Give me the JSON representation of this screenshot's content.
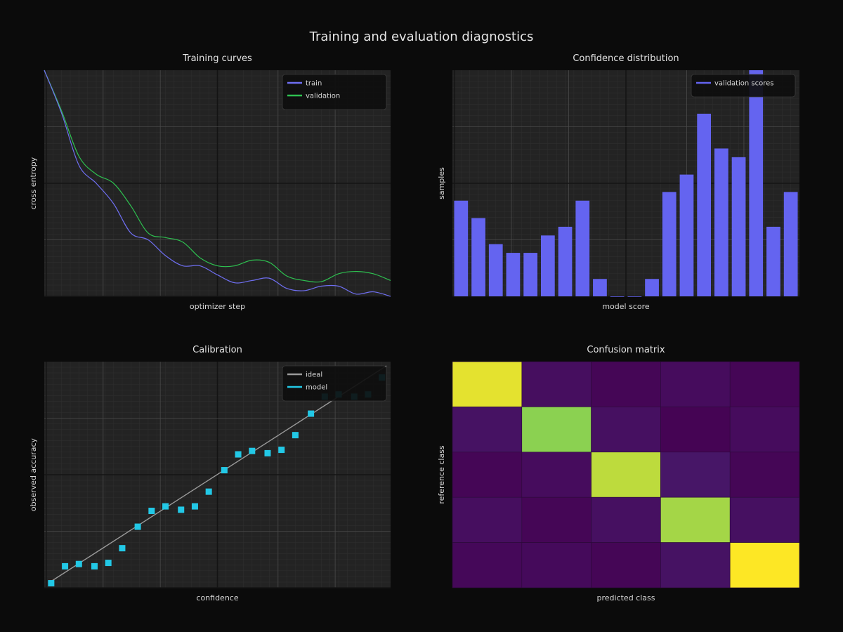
{
  "figure": {
    "title": "Training and evaluation diagnostics",
    "background": "#0b0b0b",
    "panel_background": "#232323",
    "grid_major": "#4a4a4a",
    "grid_minor": "#2e2e2e"
  },
  "chart_data": [
    {
      "type": "line",
      "title": "Training curves",
      "xlabel": "optimizer step",
      "ylabel": "cross entropy",
      "xlim": [
        0,
        1
      ],
      "ylim": [
        0,
        1
      ],
      "grid": true,
      "legend_position": "top-right",
      "x": [
        0,
        0.05,
        0.1,
        0.15,
        0.2,
        0.25,
        0.3,
        0.35,
        0.4,
        0.45,
        0.5,
        0.55,
        0.6,
        0.65,
        0.7,
        0.75,
        0.8,
        0.85,
        0.9,
        0.95,
        1.0
      ],
      "series": [
        {
          "name": "train",
          "color": "#6f6ff2",
          "values": [
            1.0,
            0.81,
            0.58,
            0.5,
            0.41,
            0.28,
            0.25,
            0.18,
            0.135,
            0.135,
            0.095,
            0.06,
            0.07,
            0.08,
            0.035,
            0.025,
            0.045,
            0.045,
            0.01,
            0.02,
            0.0
          ]
        },
        {
          "name": "validation",
          "color": "#2ec050",
          "values": [
            1.0,
            0.82,
            0.62,
            0.54,
            0.5,
            0.4,
            0.28,
            0.26,
            0.24,
            0.17,
            0.135,
            0.135,
            0.16,
            0.15,
            0.09,
            0.07,
            0.065,
            0.1,
            0.11,
            0.1,
            0.07
          ]
        }
      ]
    },
    {
      "type": "bar",
      "title": "Confidence distribution",
      "xlabel": "model score",
      "ylabel": "samples",
      "ylim": [
        0,
        26
      ],
      "grid": true,
      "legend_position": "top-right",
      "series": [
        {
          "name": "validation scores",
          "color": "#6464f0",
          "values": [
            11,
            9,
            6,
            5,
            5,
            7,
            8,
            11,
            2,
            0,
            0,
            2,
            12,
            14,
            21,
            17,
            16,
            26,
            8,
            12
          ]
        }
      ]
    },
    {
      "type": "scatter",
      "title": "Calibration",
      "xlabel": "confidence",
      "ylabel": "observed accuracy",
      "xlim": [
        0,
        1
      ],
      "ylim": [
        0,
        1
      ],
      "grid": true,
      "legend_position": "top-right",
      "series": [
        {
          "name": "ideal",
          "kind": "line",
          "color": "#9a9a9a",
          "x": [
            0,
            1
          ],
          "y": [
            0,
            1
          ]
        },
        {
          "name": "model",
          "kind": "scatter",
          "color": "#22c8e6",
          "x": [
            0.02,
            0.06,
            0.1,
            0.145,
            0.185,
            0.225,
            0.27,
            0.31,
            0.35,
            0.395,
            0.435,
            0.475,
            0.52,
            0.56,
            0.6,
            0.645,
            0.685,
            0.725,
            0.77,
            0.81,
            0.85,
            0.895,
            0.935,
            0.975
          ],
          "y": [
            0.02,
            0.095,
            0.105,
            0.095,
            0.11,
            0.175,
            0.27,
            0.34,
            0.36,
            0.345,
            0.36,
            0.425,
            0.52,
            0.59,
            0.605,
            0.595,
            0.61,
            0.675,
            0.77,
            0.845,
            0.855,
            0.845,
            0.855,
            0.93
          ]
        }
      ]
    },
    {
      "type": "heatmap",
      "title": "Confusion matrix",
      "xlabel": "predicted class",
      "ylabel": "reference class",
      "colormap": "viridis",
      "vmin": 0,
      "vmax": 1,
      "matrix": [
        [
          0.96,
          0.14,
          0.06,
          0.12,
          0.06
        ],
        [
          0.18,
          0.82,
          0.16,
          0.04,
          0.12
        ],
        [
          0.06,
          0.12,
          0.9,
          0.22,
          0.06
        ],
        [
          0.14,
          0.06,
          0.16,
          0.86,
          0.16
        ],
        [
          0.08,
          0.1,
          0.06,
          0.18,
          1.0
        ]
      ]
    }
  ]
}
